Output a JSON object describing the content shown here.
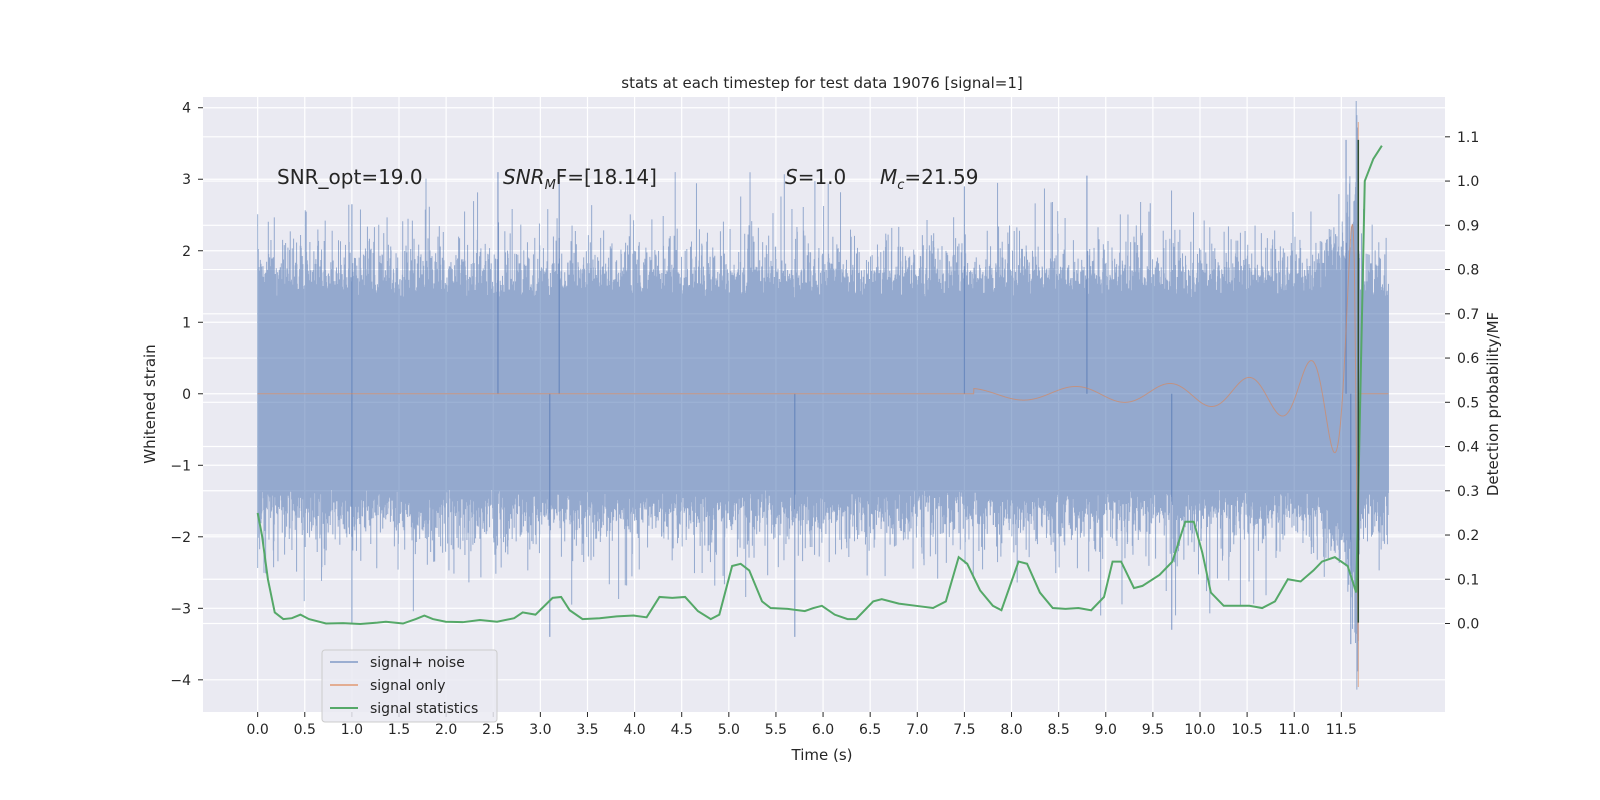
{
  "chart_data": {
    "type": "line",
    "title": "stats at each timestep for test data 19076 [signal=1]",
    "xlabel": "Time (s)",
    "ylabel_left": "Whitened strain",
    "ylabel_right": "Detection probability/MF",
    "xlim": [
      -0.58,
      12.6
    ],
    "ylim_left": [
      -4.45,
      4.15
    ],
    "ylim_right": [
      -0.2,
      1.19
    ],
    "x_ticks": [
      "0.0",
      "0.5",
      "1.0",
      "1.5",
      "2.0",
      "2.5",
      "3.0",
      "3.5",
      "4.0",
      "4.5",
      "5.0",
      "5.5",
      "6.0",
      "6.5",
      "7.0",
      "7.5",
      "8.0",
      "8.5",
      "9.0",
      "9.5",
      "10.0",
      "10.5",
      "11.0",
      "11.5"
    ],
    "y_left_ticks": [
      "−4",
      "−3",
      "−2",
      "−1",
      "0",
      "1",
      "2",
      "3",
      "4"
    ],
    "y_right_ticks": [
      "0.0",
      "0.1",
      "0.2",
      "0.3",
      "0.4",
      "0.5",
      "0.6",
      "0.7",
      "0.8",
      "0.9",
      "1.0",
      "1.1"
    ],
    "grid": true,
    "legend_position": "lower-left",
    "annotations": {
      "snr_opt": "SNR_opt=19.0",
      "snr_mf_sym": "SNR",
      "snr_mf_sub": "M",
      "snr_mf_rest": "F=[18.14]",
      "s_sym": "S",
      "s_val": "=1.0",
      "mc_sym": "M",
      "mc_sub": "c",
      "mc_val": "=21.59"
    },
    "series": [
      {
        "name": "signal+ noise",
        "color": "#4c72b0",
        "opacity": 0.5,
        "t_start": 0.0,
        "t_end": 12.0,
        "noise_envelope": 1.3,
        "noise_peaks": [
          [
            1.0,
            2.65
          ],
          [
            2.55,
            3.1
          ],
          [
            3.2,
            3.0
          ],
          [
            7.5,
            2.9
          ],
          [
            8.8,
            3.05
          ],
          [
            11.55,
            3.55
          ],
          [
            11.6,
            -3.5
          ],
          [
            3.1,
            -3.4
          ],
          [
            1.0,
            -3.2
          ],
          [
            5.7,
            -3.4
          ],
          [
            9.7,
            -3.3
          ]
        ]
      },
      {
        "name": "signal only",
        "color": "#dd8452",
        "merger_time": 11.68,
        "peak_value": 3.8,
        "min_value": -4.1
      },
      {
        "name": "signal statistics",
        "color": "#55a868",
        "points": [
          [
            0.0,
            0.25
          ],
          [
            0.05,
            0.2
          ],
          [
            0.12,
            0.1
          ],
          [
            0.2,
            0.025
          ],
          [
            0.3,
            0.01
          ],
          [
            0.4,
            0.012
          ],
          [
            0.5,
            0.02
          ],
          [
            0.6,
            0.01
          ],
          [
            0.8,
            0.0
          ],
          [
            1.0,
            0.001
          ],
          [
            1.2,
            -0.001
          ],
          [
            1.4,
            0.002
          ],
          [
            1.5,
            0.004
          ],
          [
            1.7,
            0.0
          ],
          [
            1.85,
            0.01
          ],
          [
            1.95,
            0.018
          ],
          [
            2.05,
            0.01
          ],
          [
            2.2,
            0.004
          ],
          [
            2.4,
            0.003
          ],
          [
            2.6,
            0.008
          ],
          [
            2.8,
            0.004
          ],
          [
            3.0,
            0.012
          ],
          [
            3.1,
            0.025
          ],
          [
            3.25,
            0.02
          ],
          [
            3.45,
            0.058
          ],
          [
            3.55,
            0.06
          ],
          [
            3.65,
            0.03
          ],
          [
            3.8,
            0.01
          ],
          [
            4.0,
            0.012
          ],
          [
            4.2,
            0.016
          ],
          [
            4.4,
            0.018
          ],
          [
            4.55,
            0.014
          ],
          [
            4.7,
            0.06
          ],
          [
            4.85,
            0.058
          ],
          [
            5.0,
            0.06
          ],
          [
            5.15,
            0.028
          ],
          [
            5.3,
            0.01
          ],
          [
            5.4,
            0.02
          ],
          [
            5.55,
            0.13
          ],
          [
            5.65,
            0.135
          ],
          [
            5.75,
            0.12
          ],
          [
            5.9,
            0.05
          ],
          [
            6.0,
            0.035
          ],
          [
            6.2,
            0.033
          ],
          [
            6.4,
            0.028
          ],
          [
            6.5,
            0.035
          ],
          [
            6.6,
            0.04
          ],
          [
            6.75,
            0.02
          ],
          [
            6.9,
            0.01
          ],
          [
            7.0,
            0.01
          ],
          [
            7.2,
            0.05
          ],
          [
            7.3,
            0.055
          ],
          [
            7.5,
            0.045
          ],
          [
            7.7,
            0.04
          ],
          [
            7.9,
            0.035
          ],
          [
            8.05,
            0.05
          ],
          [
            8.2,
            0.15
          ],
          [
            8.3,
            0.135
          ],
          [
            8.45,
            0.075
          ],
          [
            8.6,
            0.04
          ],
          [
            8.7,
            0.03
          ],
          [
            8.9,
            0.14
          ],
          [
            9.0,
            0.135
          ],
          [
            9.15,
            0.07
          ],
          [
            9.3,
            0.035
          ],
          [
            9.45,
            0.033
          ],
          [
            9.6,
            0.035
          ],
          [
            9.75,
            0.03
          ],
          [
            9.9,
            0.06
          ],
          [
            10.0,
            0.14
          ],
          [
            10.1,
            0.14
          ],
          [
            10.25,
            0.08
          ],
          [
            10.35,
            0.085
          ],
          [
            10.55,
            0.11
          ],
          [
            10.7,
            0.14
          ],
          [
            10.85,
            0.23
          ],
          [
            10.95,
            0.23
          ],
          [
            11.05,
            0.16
          ],
          [
            11.15,
            0.07
          ],
          [
            11.3,
            0.04
          ],
          [
            11.45,
            0.04
          ],
          [
            11.6,
            0.04
          ],
          [
            11.75,
            0.035
          ],
          [
            11.9,
            0.05
          ],
          [
            12.05,
            0.1
          ],
          [
            12.2,
            0.095
          ],
          [
            12.35,
            0.12
          ],
          [
            12.45,
            0.14
          ],
          [
            12.6,
            0.15
          ],
          [
            12.75,
            0.13
          ],
          [
            12.85,
            0.07
          ],
          [
            12.95,
            1.0
          ],
          [
            13.05,
            1.05
          ],
          [
            13.15,
            1.08
          ]
        ]
      }
    ]
  }
}
